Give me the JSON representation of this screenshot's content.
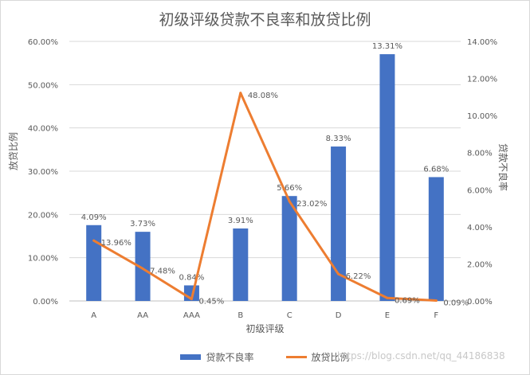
{
  "chart_data": {
    "type": "bar",
    "title": "初级评级贷款不良率和放贷比例",
    "xlabel": "初级评级",
    "ylabel_left": "放贷比例",
    "ylabel_right": "贷款不良率",
    "categories": [
      "A",
      "AA",
      "AAA",
      "B",
      "C",
      "D",
      "E",
      "F"
    ],
    "series": [
      {
        "name": "贷款不良率",
        "kind": "bar",
        "axis": "right",
        "values": [
          4.09,
          3.73,
          0.84,
          3.91,
          5.66,
          8.33,
          13.31,
          6.68
        ],
        "labels": [
          "4.09%",
          "3.73%",
          "0.84%",
          "3.91%",
          "5.66%",
          "8.33%",
          "13.31%",
          "6.68%"
        ],
        "color": "#4472c4"
      },
      {
        "name": "放贷比例",
        "kind": "line",
        "axis": "left",
        "values": [
          13.96,
          7.48,
          0.45,
          48.08,
          23.02,
          6.22,
          0.69,
          0.09
        ],
        "labels": [
          "13.96%",
          "7.48%",
          "0.45%",
          "48.08%",
          "23.02%",
          "6.22%",
          "0.69%",
          "0.09%"
        ],
        "color": "#ed7d31"
      }
    ],
    "ylim_left": [
      0,
      60
    ],
    "ylim_right": [
      0,
      14
    ],
    "left_ticks": [
      "0.00%",
      "10.00%",
      "20.00%",
      "30.00%",
      "40.00%",
      "50.00%",
      "60.00%"
    ],
    "right_ticks": [
      "0.00%",
      "2.00%",
      "4.00%",
      "6.00%",
      "8.00%",
      "10.00%",
      "12.00%",
      "14.00%"
    ],
    "grid": true,
    "legend_position": "bottom"
  },
  "watermark": "https://blog.csdn.net/qq_44186838"
}
